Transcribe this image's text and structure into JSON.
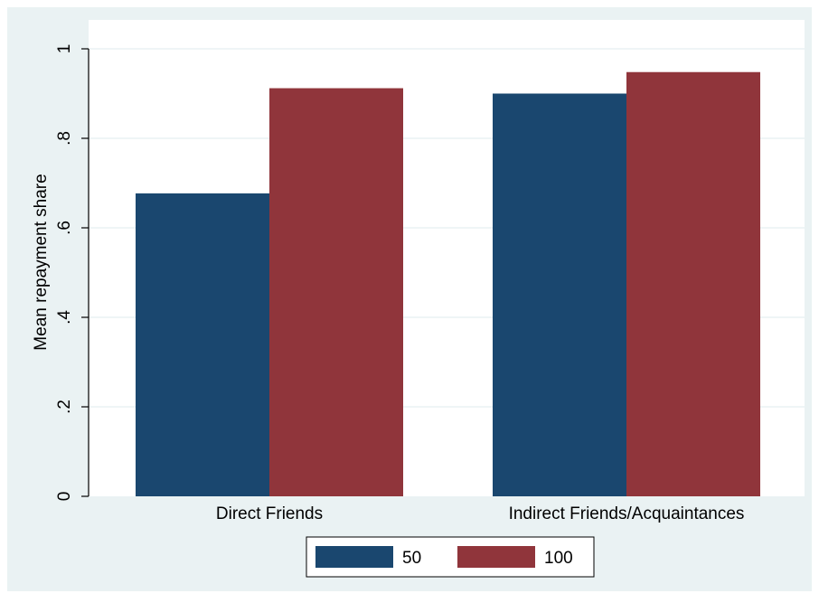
{
  "chart_data": {
    "type": "bar",
    "title": "",
    "xlabel": "",
    "ylabel": "Mean repayment share",
    "categories": [
      "Direct Friends",
      "Indirect Friends/Acquaintances"
    ],
    "series": [
      {
        "name": "50",
        "values": [
          0.677,
          0.9
        ],
        "color": "#1a476f"
      },
      {
        "name": "100",
        "values": [
          0.912,
          0.948
        ],
        "color": "#90353b"
      }
    ],
    "ylim": [
      0,
      1
    ],
    "yticks": [
      0,
      0.2,
      0.4,
      0.6,
      0.8,
      1
    ],
    "ytick_labels": [
      "0",
      ".2",
      ".4",
      ".6",
      ".8",
      "1"
    ],
    "grid": true,
    "legend_position": "bottom-center",
    "colors": {
      "outer_background": "#eaf2f3",
      "plot_background": "#ffffff",
      "grid": "#eaf2f3"
    }
  }
}
